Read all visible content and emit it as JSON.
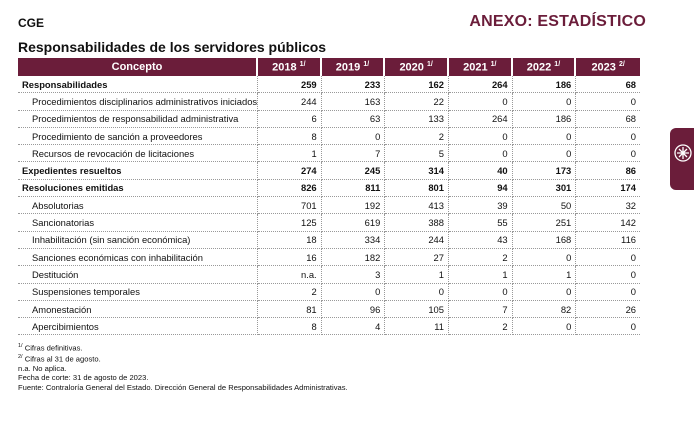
{
  "header": {
    "organization": "CGE",
    "section": "ANEXO: ESTADÍSTICO"
  },
  "title": "Responsabilidades de los servidores públicos",
  "table": {
    "concept_header": "Concepto",
    "columns": [
      {
        "label": "2018",
        "note": "1/"
      },
      {
        "label": "2019",
        "note": "1/"
      },
      {
        "label": "2020",
        "note": "1/"
      },
      {
        "label": "2021",
        "note": "1/"
      },
      {
        "label": "2022",
        "note": "1/"
      },
      {
        "label": "2023",
        "note": "2/"
      }
    ],
    "rows": [
      {
        "label": "Responsabilidades",
        "bold": true,
        "values": [
          259,
          233,
          162,
          264,
          186,
          68
        ]
      },
      {
        "label": "Procedimientos disciplinarios administrativos iniciados",
        "bold": false,
        "values": [
          244,
          163,
          22,
          0,
          0,
          0
        ]
      },
      {
        "label": "Procedimientos de responsabilidad administrativa",
        "bold": false,
        "values": [
          6,
          63,
          133,
          264,
          186,
          68
        ]
      },
      {
        "label": "Procedimiento de sanción a proveedores",
        "bold": false,
        "values": [
          8,
          0,
          2,
          0,
          0,
          0
        ]
      },
      {
        "label": "Recursos de revocación de licitaciones",
        "bold": false,
        "values": [
          1,
          7,
          5,
          0,
          0,
          0
        ]
      },
      {
        "label": "Expedientes resueltos",
        "bold": true,
        "values": [
          274,
          245,
          314,
          40,
          173,
          86
        ]
      },
      {
        "label": "Resoluciones emitidas",
        "bold": true,
        "values": [
          826,
          811,
          801,
          94,
          301,
          174
        ]
      },
      {
        "label": "Absolutorias",
        "bold": false,
        "values": [
          701,
          192,
          413,
          39,
          50,
          32
        ]
      },
      {
        "label": "Sancionatorias",
        "bold": false,
        "values": [
          125,
          619,
          388,
          55,
          251,
          142
        ]
      },
      {
        "label": "Inhabilitación (sin sanción económica)",
        "bold": false,
        "values": [
          18,
          334,
          244,
          43,
          168,
          116
        ]
      },
      {
        "label": "Sanciones económicas con inhabilitación",
        "bold": false,
        "values": [
          16,
          182,
          27,
          2,
          0,
          0
        ]
      },
      {
        "label": "Destitución",
        "bold": false,
        "values": [
          "n.a.",
          3,
          1,
          1,
          1,
          0
        ]
      },
      {
        "label": "Suspensiones temporales",
        "bold": false,
        "values": [
          2,
          0,
          0,
          0,
          0,
          0
        ]
      },
      {
        "label": "Amonestación",
        "bold": false,
        "values": [
          81,
          96,
          105,
          7,
          82,
          26
        ]
      },
      {
        "label": "Apercibimientos",
        "bold": false,
        "values": [
          8,
          4,
          11,
          2,
          0,
          0
        ]
      }
    ]
  },
  "footnotes": [
    {
      "mark": "1/",
      "text": "Cifras definitivas."
    },
    {
      "mark": "2/",
      "text": "Cifras al 31 de agosto."
    },
    {
      "mark": null,
      "text": "n.a. No aplica."
    },
    {
      "mark": null,
      "text": "Fecha de corte: 31 de agosto de 2023."
    },
    {
      "mark": null,
      "text": "Fuente: Contraloría General del Estado. Dirección General de Responsabilidades Administrativas."
    }
  ]
}
